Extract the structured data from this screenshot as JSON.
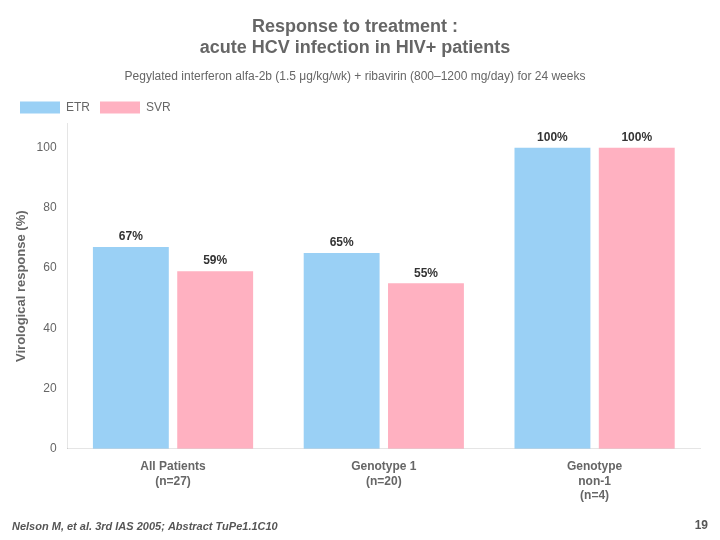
{
  "chart_data": {
    "type": "bar",
    "title": "Response to treatment :\nacute HCV infection in HIV+ patients",
    "subtitle": "Pegylated interferon alfa-2b (1.5 μg/kg/wk) + ribavirin (800–1200 mg/day) for 24 weeks",
    "ylabel": "Virological response (%)",
    "categories": [
      "All Patients\n(n=27)",
      "Genotype 1\n(n=20)",
      "Genotype\nnon-1\n(n=4)"
    ],
    "series": [
      {
        "name": "ETR",
        "values": [
          67,
          65,
          100
        ],
        "value_labels": [
          "67%",
          "65%",
          "100%"
        ]
      },
      {
        "name": "SVR",
        "values": [
          59,
          55,
          100
        ],
        "value_labels": [
          "59%",
          "55%",
          "100%"
        ]
      }
    ],
    "ylim": [
      0,
      108
    ],
    "yticks": [
      0,
      20,
      40,
      60,
      80,
      100
    ],
    "grid": false,
    "legend": "upper left",
    "data_labels": true,
    "annotations": [
      "Nelson M, et al. 3rd IAS 2005; Abstract TuPe1.1C10",
      "19"
    ]
  }
}
